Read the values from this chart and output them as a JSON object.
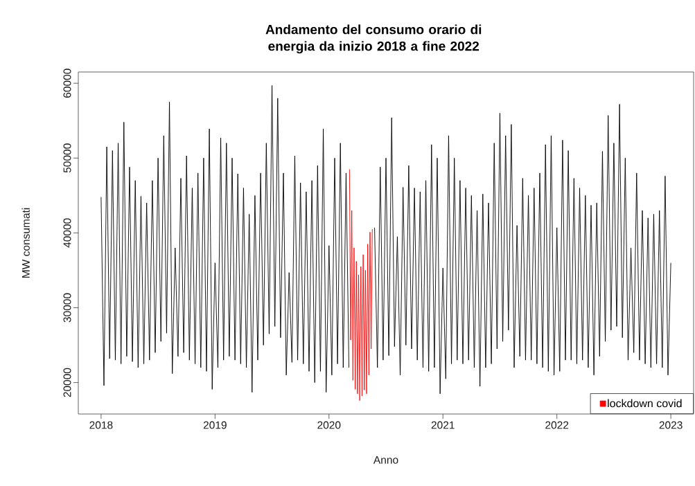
{
  "chart_data": {
    "type": "line",
    "title": "Andamento del consumo orario di energia da inizio 2018 a fine 2022",
    "xlabel": "Anno",
    "ylabel": "MW consumati",
    "xlim": [
      2017.8,
      2023.2
    ],
    "xticks": [
      2018,
      2019,
      2020,
      2021,
      2022,
      2023
    ],
    "ylim": [
      15800,
      61500
    ],
    "yticks": [
      20000,
      30000,
      40000,
      50000,
      60000
    ],
    "legend": "bottom right",
    "grid": false,
    "series": [
      {
        "color": "#000000",
        "x": [
          2018.0,
          2018.025,
          2018.05,
          2018.075,
          2018.1,
          2018.125,
          2018.15,
          2018.175,
          2018.2,
          2018.225,
          2018.25,
          2018.275,
          2018.3,
          2018.325,
          2018.35,
          2018.375,
          2018.4,
          2018.425,
          2018.45,
          2018.475,
          2018.5,
          2018.525,
          2018.55,
          2018.575,
          2018.6,
          2018.625,
          2018.65,
          2018.675,
          2018.7,
          2018.725,
          2018.75,
          2018.775,
          2018.8,
          2018.825,
          2018.85,
          2018.875,
          2018.9,
          2018.925,
          2018.95,
          2018.975,
          2019.0,
          2019.025,
          2019.05,
          2019.075,
          2019.1,
          2019.125,
          2019.15,
          2019.175,
          2019.2,
          2019.225,
          2019.25,
          2019.275,
          2019.3,
          2019.325,
          2019.35,
          2019.375,
          2019.4,
          2019.425,
          2019.45,
          2019.475,
          2019.5,
          2019.525,
          2019.55,
          2019.575,
          2019.6,
          2019.625,
          2019.65,
          2019.675,
          2019.7,
          2019.725,
          2019.75,
          2019.775,
          2019.8,
          2019.825,
          2019.85,
          2019.875,
          2019.9,
          2019.925,
          2019.95,
          2019.975,
          2020.0,
          2020.025,
          2020.05,
          2020.075,
          2020.1,
          2020.125,
          2020.15,
          2020.175,
          2020.28,
          2020.4,
          2020.425,
          2020.45,
          2020.475,
          2020.5,
          2020.525,
          2020.55,
          2020.575,
          2020.6,
          2020.625,
          2020.65,
          2020.675,
          2020.7,
          2020.725,
          2020.75,
          2020.775,
          2020.8,
          2020.825,
          2020.85,
          2020.875,
          2020.9,
          2020.925,
          2020.95,
          2020.975,
          2021.0,
          2021.025,
          2021.05,
          2021.075,
          2021.1,
          2021.125,
          2021.15,
          2021.175,
          2021.2,
          2021.225,
          2021.25,
          2021.275,
          2021.3,
          2021.325,
          2021.35,
          2021.375,
          2021.4,
          2021.425,
          2021.45,
          2021.475,
          2021.5,
          2021.525,
          2021.55,
          2021.575,
          2021.6,
          2021.625,
          2021.65,
          2021.675,
          2021.7,
          2021.725,
          2021.75,
          2021.775,
          2021.8,
          2021.825,
          2021.85,
          2021.875,
          2021.9,
          2021.925,
          2021.95,
          2021.975,
          2022.0,
          2022.025,
          2022.05,
          2022.075,
          2022.1,
          2022.125,
          2022.15,
          2022.175,
          2022.2,
          2022.225,
          2022.25,
          2022.275,
          2022.3,
          2022.325,
          2022.35,
          2022.375,
          2022.4,
          2022.425,
          2022.45,
          2022.475,
          2022.5,
          2022.525,
          2022.55,
          2022.575,
          2022.6,
          2022.625,
          2022.65,
          2022.675,
          2022.7,
          2022.725,
          2022.75,
          2022.775,
          2022.8,
          2022.825,
          2022.85,
          2022.875,
          2022.9,
          2022.925,
          2022.95,
          2022.975,
          2023.0
        ],
        "values": [
          44800,
          19600,
          51500,
          23200,
          51000,
          23000,
          52000,
          22500,
          54800,
          23500,
          48800,
          22800,
          47000,
          22000,
          44900,
          22500,
          44000,
          23000,
          47000,
          24000,
          50000,
          25500,
          53000,
          26600,
          57500,
          21200,
          38000,
          23500,
          47300,
          24000,
          50300,
          23000,
          46000,
          22500,
          48000,
          22000,
          50000,
          21500,
          53900,
          19100,
          36000,
          22000,
          52700,
          23000,
          52000,
          23500,
          50000,
          23000,
          47900,
          22500,
          46000,
          22000,
          42500,
          18700,
          45000,
          23000,
          48000,
          25000,
          52000,
          26500,
          59700,
          27500,
          58000,
          26000,
          48000,
          21000,
          34700,
          22700,
          50300,
          23000,
          46700,
          22500,
          45500,
          21500,
          47000,
          20000,
          49000,
          21500,
          53900,
          18700,
          38300,
          21000,
          50000,
          22500,
          52000,
          22000,
          48000,
          22000,
          null,
          40700,
          22000,
          48800,
          23000,
          50000,
          23600,
          55400,
          24800,
          39500,
          21000,
          46100,
          25000,
          49000,
          24500,
          46000,
          23000,
          45500,
          22000,
          47000,
          21500,
          51800,
          22000,
          50000,
          18500,
          35300,
          20500,
          53000,
          22500,
          50000,
          23000,
          47000,
          22500,
          46000,
          23000,
          45000,
          22000,
          43000,
          19500,
          45200,
          22000,
          44000,
          22500,
          52000,
          24500,
          56000,
          25500,
          53000,
          27000,
          54500,
          22000,
          41000,
          23500,
          47300,
          23000,
          45000,
          23000,
          46000,
          22500,
          48000,
          22000,
          51800,
          21500,
          53000,
          21000,
          40700,
          21500,
          52400,
          23000,
          51000,
          23000,
          47300,
          22500,
          46000,
          23000,
          45000,
          22000,
          43700,
          21000,
          44000,
          23500,
          50900,
          25500,
          55700,
          27000,
          52000,
          27500,
          57200,
          26000,
          50000,
          23000,
          38000,
          24000,
          48000,
          23000,
          43000,
          22500,
          42000,
          22000,
          42500,
          22500,
          43000,
          22000,
          47600,
          21000,
          36000
        ]
      },
      {
        "name": "lockdown covid",
        "color": "#ff0000",
        "x": [
          2020.18,
          2020.19,
          2020.2,
          2020.21,
          2020.22,
          2020.23,
          2020.24,
          2020.25,
          2020.26,
          2020.27,
          2020.28,
          2020.29,
          2020.3,
          2020.31,
          2020.32,
          2020.33,
          2020.34,
          2020.35,
          2020.36,
          2020.37,
          2020.38
        ],
        "values": [
          48500,
          25700,
          43000,
          20300,
          38000,
          19100,
          36200,
          18500,
          34400,
          17600,
          35500,
          18200,
          37100,
          19000,
          35000,
          18500,
          38500,
          21000,
          40100,
          24500,
          40500
        ]
      }
    ]
  }
}
